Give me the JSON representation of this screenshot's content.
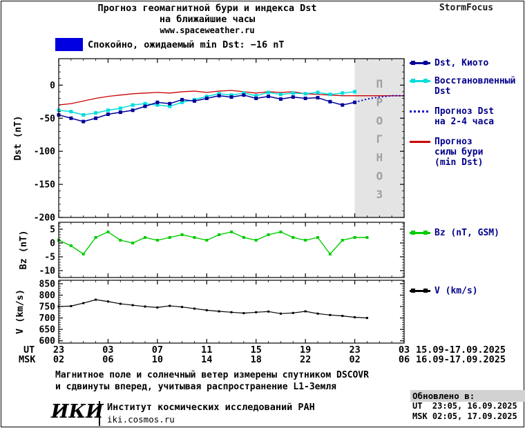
{
  "header": {
    "title_line1": "Прогноз геомагнитной бури и индекса Dst",
    "title_line2": "на ближайшие часы",
    "site": "www.spaceweather.ru",
    "brand": "StormFocus"
  },
  "banner": {
    "color": "#0000e0",
    "text": "Спокойно, ожидаемый min Dst: −16 nT"
  },
  "forecast_label": "ПРОГНОЗ",
  "legend": {
    "dst_kyoto": "Dst, Киото",
    "restored_l1": "Восстановленный",
    "restored_l2": "Dst",
    "fc_dst_l1": "Прогноз Dst",
    "fc_dst_l2": "на 2-4 часа",
    "storm_l1": "Прогноз",
    "storm_l2": "силы бури",
    "storm_l3": "(min Dst)",
    "bz": "Bz (nT, GSM)",
    "v": "V (km/s)"
  },
  "axis": {
    "ut_label": "UT",
    "msk_label": "MSK",
    "xticks_hours": [
      0,
      4,
      8,
      12,
      16,
      20,
      24,
      28
    ],
    "ut_ticks": [
      "23",
      "03",
      "07",
      "11",
      "15",
      "19",
      "23",
      "03"
    ],
    "msk_ticks": [
      "02",
      "06",
      "10",
      "14",
      "18",
      "22",
      "02",
      "06"
    ],
    "ut_dates": "15.09-17.09.2025",
    "msk_dates": "16.09-17.09.2025"
  },
  "footnote": {
    "line1": "Магнитное поле и солнечный ветер измерены спутником DSCOVR",
    "line2": "и сдвинуты вперед, учитывая распространение L1-Земля"
  },
  "footer": {
    "logo": "ИКИ",
    "institute": "Институт космических исследований РАН",
    "site": "iki.cosmos.ru",
    "updated_label": "Обновлено в:",
    "updated_ut": "UT  23:05, 16.09.2025",
    "updated_msk": "MSK 02:05, 17.09.2025"
  },
  "chart_data": [
    {
      "type": "line",
      "ylabel": "Dst (nT)",
      "ylim": [
        -200,
        40
      ],
      "yticks": [
        0,
        -50,
        -100,
        -150,
        -200
      ],
      "yminor": 10,
      "xlim": [
        0,
        28
      ],
      "forecast_region": [
        24,
        28
      ],
      "series": [
        {
          "name": "Прогноз силы бури (min Dst)",
          "color": "#cc0000",
          "marker": null,
          "width": 1.3,
          "x": [
            0,
            1,
            2,
            3,
            4,
            5,
            6,
            7,
            8,
            9,
            10,
            11,
            12,
            13,
            14,
            15,
            16,
            17,
            18,
            19,
            20,
            21,
            22,
            23,
            24,
            25,
            26,
            27,
            28
          ],
          "values": [
            -30,
            -28,
            -24,
            -20,
            -17,
            -15,
            -13,
            -12,
            -11,
            -12,
            -10,
            -9,
            -11,
            -9,
            -8,
            -10,
            -12,
            -10,
            -11,
            -10,
            -13,
            -14,
            -15,
            -16,
            -16,
            -16,
            -16,
            -16,
            -16
          ]
        },
        {
          "name": "Восстановленный Dst",
          "color": "#00dddd",
          "marker": "square",
          "width": 1.5,
          "x": [
            0,
            1,
            2,
            3,
            4,
            5,
            6,
            7,
            8,
            9,
            10,
            11,
            12,
            13,
            14,
            15,
            16,
            17,
            18,
            19,
            20,
            21,
            22,
            23,
            24
          ],
          "values": [
            -38,
            -40,
            -45,
            -42,
            -38,
            -35,
            -30,
            -28,
            -30,
            -32,
            -26,
            -22,
            -17,
            -13,
            -15,
            -12,
            -16,
            -11,
            -14,
            -12,
            -13,
            -11,
            -14,
            -12,
            -10
          ]
        },
        {
          "name": "Dst, Киото",
          "color": "#000099",
          "marker": "square",
          "width": 1.5,
          "x": [
            0,
            1,
            2,
            3,
            4,
            5,
            6,
            7,
            8,
            9,
            10,
            11,
            12,
            13,
            14,
            15,
            16,
            17,
            18,
            19,
            20,
            21,
            22,
            23,
            24
          ],
          "values": [
            -45,
            -50,
            -55,
            -50,
            -44,
            -41,
            -38,
            -32,
            -26,
            -28,
            -22,
            -24,
            -20,
            -16,
            -18,
            -15,
            -20,
            -17,
            -21,
            -18,
            -20,
            -19,
            -25,
            -30,
            -26
          ]
        },
        {
          "name": "Прогноз Dst на 2-4 часа",
          "color": "#0000cc",
          "marker": null,
          "dash": "2 3",
          "width": 2,
          "x": [
            24,
            25,
            26,
            27,
            28
          ],
          "values": [
            -26,
            -21,
            -18,
            -16,
            -16
          ]
        }
      ]
    },
    {
      "type": "line",
      "ylabel": "Bz (nT)",
      "ylim": [
        -12.5,
        7.5
      ],
      "yticks": [
        5,
        0,
        -5,
        -10
      ],
      "yminor": 1,
      "xlim": [
        0,
        28
      ],
      "series": [
        {
          "name": "Bz (nT, GSM)",
          "color": "#00cc00",
          "marker": "square",
          "width": 1.4,
          "x": [
            0,
            1,
            2,
            3,
            4,
            5,
            6,
            7,
            8,
            9,
            10,
            11,
            12,
            13,
            14,
            15,
            16,
            17,
            18,
            19,
            20,
            21,
            22,
            23,
            24,
            25
          ],
          "values": [
            1,
            -1,
            -4,
            2,
            4,
            1,
            0,
            2,
            1,
            2,
            3,
            2,
            1,
            3,
            4,
            2,
            1,
            3,
            4,
            2,
            1,
            2,
            -4,
            1,
            2,
            2
          ]
        }
      ]
    },
    {
      "type": "line",
      "ylabel": "V (km/s)",
      "ylim": [
        590,
        865
      ],
      "yticks": [
        850,
        800,
        750,
        700,
        650,
        600
      ],
      "yminor": 10,
      "xlim": [
        0,
        28
      ],
      "series": [
        {
          "name": "V (km/s)",
          "color": "#000000",
          "marker": "square",
          "width": 1.2,
          "x": [
            0,
            1,
            2,
            3,
            4,
            5,
            6,
            7,
            8,
            9,
            10,
            11,
            12,
            13,
            14,
            15,
            16,
            17,
            18,
            19,
            20,
            21,
            22,
            23,
            24,
            25
          ],
          "values": [
            750,
            752,
            765,
            780,
            772,
            762,
            756,
            750,
            746,
            753,
            748,
            741,
            734,
            729,
            725,
            721,
            725,
            728,
            719,
            722,
            729,
            719,
            713,
            709,
            703,
            700
          ]
        }
      ]
    }
  ]
}
